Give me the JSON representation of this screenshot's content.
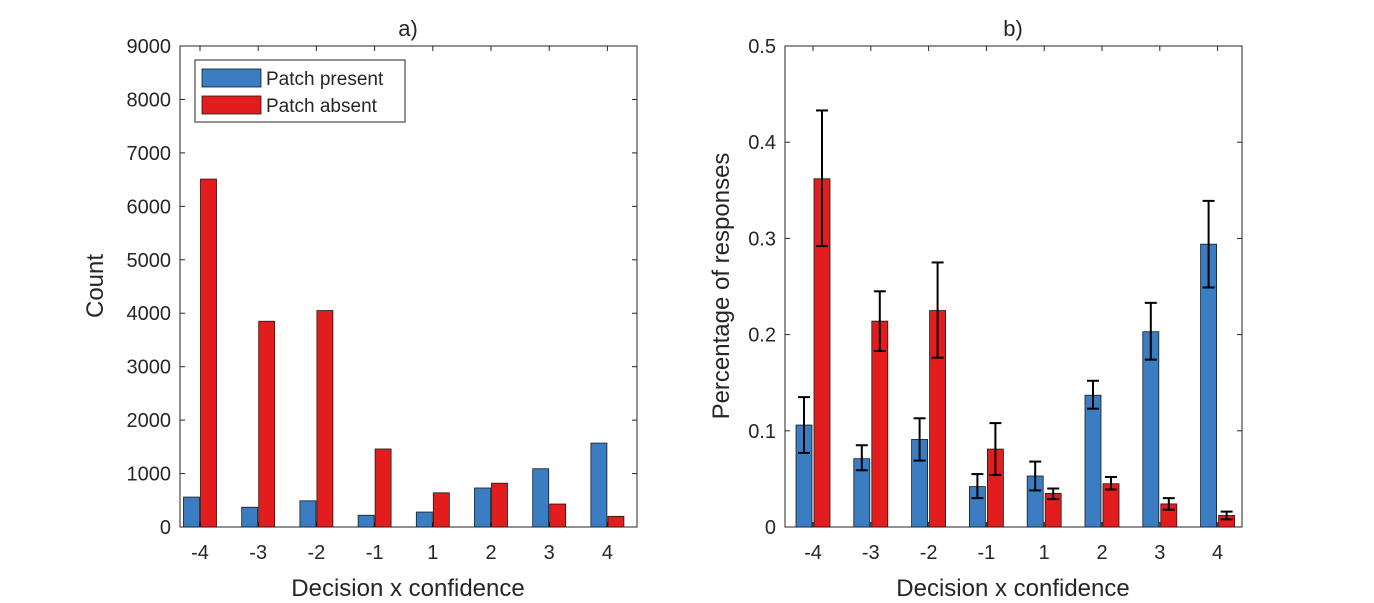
{
  "chart_data": [
    {
      "type": "bar",
      "title": "a)",
      "xlabel": "Decision x confidence",
      "ylabel": "Count",
      "categories": [
        "-4",
        "-3",
        "-2",
        "-1",
        "1",
        "2",
        "3",
        "4"
      ],
      "ylim": [
        0,
        9000
      ],
      "yticks": [
        0,
        1000,
        2000,
        3000,
        4000,
        5000,
        6000,
        7000,
        8000,
        9000
      ],
      "legend": {
        "placement": "top-left"
      },
      "series": [
        {
          "name": "Patch present",
          "color": "#3a7dc2",
          "values": [
            560,
            370,
            490,
            220,
            280,
            730,
            1090,
            1570
          ]
        },
        {
          "name": "Patch absent",
          "color": "#e31d1d",
          "values": [
            6510,
            3850,
            4050,
            1460,
            640,
            820,
            430,
            200
          ]
        }
      ]
    },
    {
      "type": "bar",
      "title": "b)",
      "xlabel": "Decision x confidence",
      "ylabel": "Percentage of responses",
      "categories": [
        "-4",
        "-3",
        "-2",
        "-1",
        "1",
        "2",
        "3",
        "4"
      ],
      "ylim": [
        0,
        0.5
      ],
      "yticks": [
        0,
        0.1,
        0.2,
        0.3,
        0.4,
        0.5
      ],
      "series": [
        {
          "name": "Patch present",
          "color": "#3a7dc2",
          "values": [
            0.106,
            0.071,
            0.091,
            0.042,
            0.053,
            0.137,
            0.203,
            0.294
          ],
          "err_low": [
            0.077,
            0.059,
            0.069,
            0.03,
            0.038,
            0.123,
            0.174,
            0.249
          ],
          "err_high": [
            0.135,
            0.085,
            0.113,
            0.055,
            0.068,
            0.152,
            0.233,
            0.339
          ]
        },
        {
          "name": "Patch absent",
          "color": "#e31d1d",
          "values": [
            0.362,
            0.214,
            0.225,
            0.081,
            0.035,
            0.045,
            0.024,
            0.012
          ],
          "err_low": [
            0.292,
            0.183,
            0.176,
            0.054,
            0.029,
            0.039,
            0.018,
            0.008
          ],
          "err_high": [
            0.433,
            0.245,
            0.275,
            0.108,
            0.04,
            0.052,
            0.03,
            0.016
          ]
        }
      ]
    }
  ]
}
